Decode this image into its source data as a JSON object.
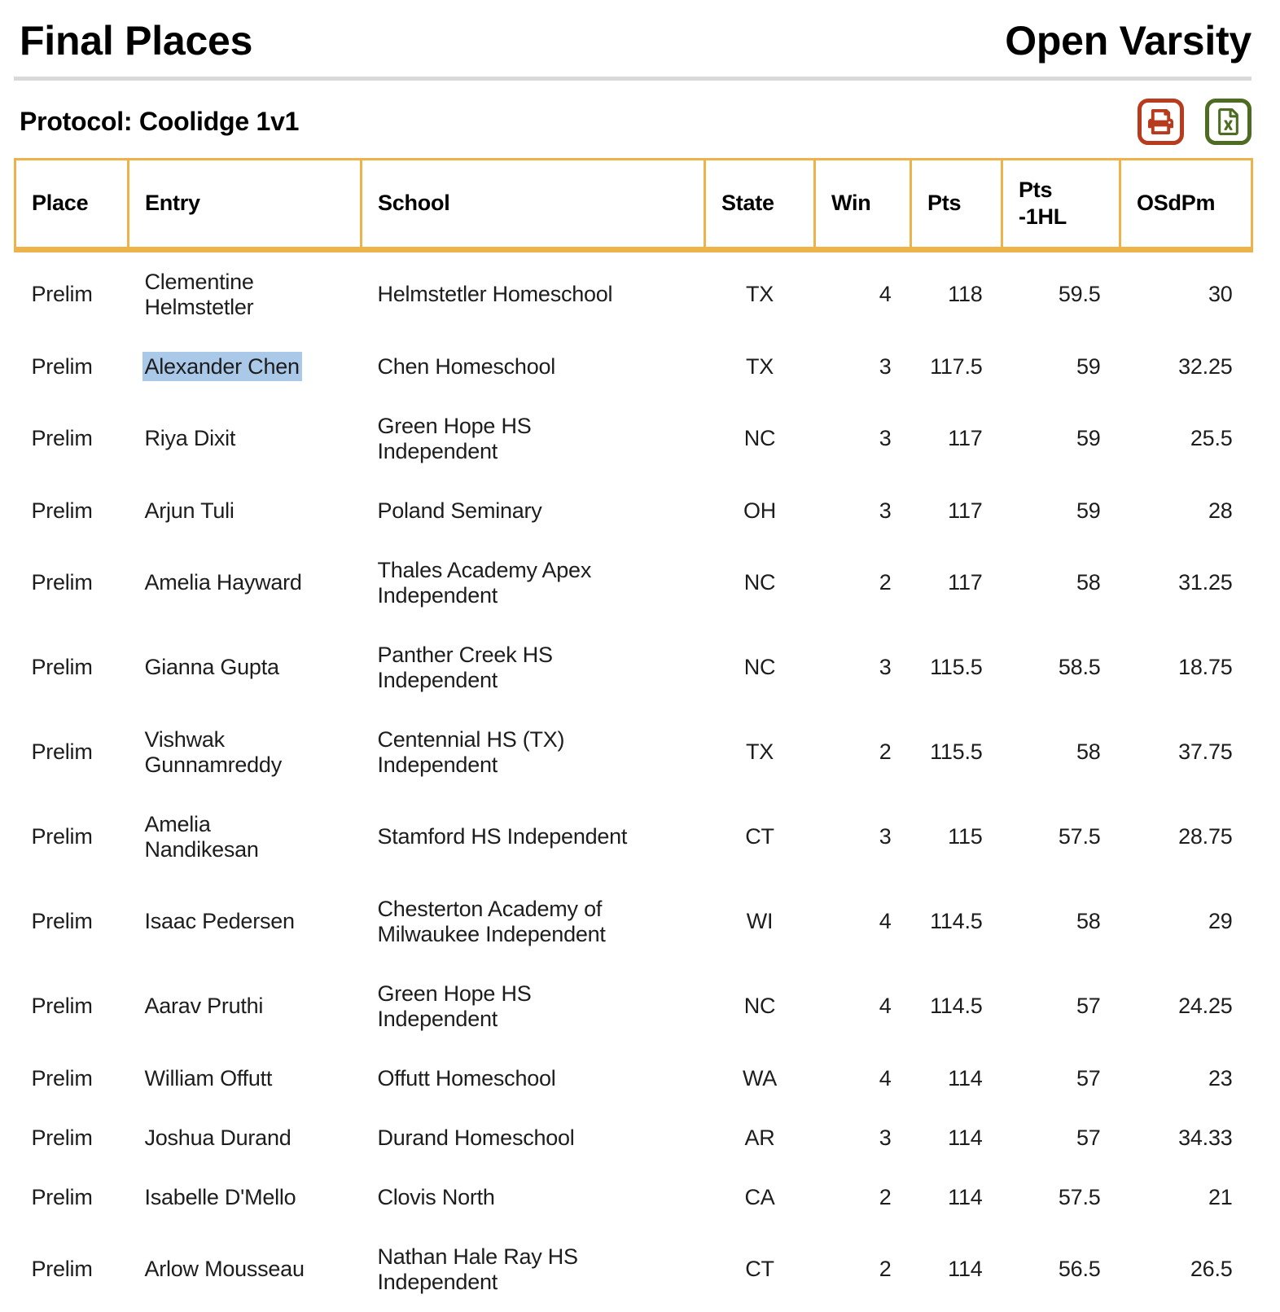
{
  "page": {
    "title": "Final Places",
    "division": "Open Varsity",
    "protocol": "Protocol: Coolidge 1v1"
  },
  "toolbar": {
    "icons": [
      {
        "name": "print-icon",
        "color": "#b83b1e"
      },
      {
        "name": "excel-file-icon",
        "color": "#4d6b21"
      }
    ]
  },
  "colors": {
    "accent_border": "#eeb24b",
    "print_red": "#b83b1e",
    "excel_green": "#4d6b21",
    "selection_blue": "#aac8e8",
    "divider_gray": "#d9d9d9",
    "text": "#1d1d1d"
  },
  "table": {
    "columns": [
      {
        "key": "place",
        "label": "Place"
      },
      {
        "key": "entry",
        "label": "Entry"
      },
      {
        "key": "school",
        "label": "School"
      },
      {
        "key": "state",
        "label": "State"
      },
      {
        "key": "win",
        "label": "Win"
      },
      {
        "key": "pts",
        "label": "Pts"
      },
      {
        "key": "pts_1hl",
        "label": "Pts\n-1HL"
      },
      {
        "key": "osdpm",
        "label": "OSdPm"
      }
    ],
    "rows": [
      {
        "place": "Prelim",
        "entry": "Clementine\nHelmstetler",
        "entry_highlighted": false,
        "school": "Helmstetler Homeschool",
        "state": "TX",
        "win": 4,
        "pts": 118,
        "pts_1hl": 59.5,
        "osdpm": 30
      },
      {
        "place": "Prelim",
        "entry": "Alexander Chen",
        "entry_highlighted": true,
        "school": "Chen Homeschool",
        "state": "TX",
        "win": 3,
        "pts": 117.5,
        "pts_1hl": 59,
        "osdpm": 32.25
      },
      {
        "place": "Prelim",
        "entry": "Riya Dixit",
        "entry_highlighted": false,
        "school": "Green Hope HS\nIndependent",
        "state": "NC",
        "win": 3,
        "pts": 117,
        "pts_1hl": 59,
        "osdpm": 25.5
      },
      {
        "place": "Prelim",
        "entry": "Arjun Tuli",
        "entry_highlighted": false,
        "school": "Poland Seminary",
        "state": "OH",
        "win": 3,
        "pts": 117,
        "pts_1hl": 59,
        "osdpm": 28
      },
      {
        "place": "Prelim",
        "entry": "Amelia Hayward",
        "entry_highlighted": false,
        "school": "Thales Academy Apex\nIndependent",
        "state": "NC",
        "win": 2,
        "pts": 117,
        "pts_1hl": 58,
        "osdpm": 31.25
      },
      {
        "place": "Prelim",
        "entry": "Gianna Gupta",
        "entry_highlighted": false,
        "school": "Panther Creek HS\nIndependent",
        "state": "NC",
        "win": 3,
        "pts": 115.5,
        "pts_1hl": 58.5,
        "osdpm": 18.75
      },
      {
        "place": "Prelim",
        "entry": "Vishwak\nGunnamreddy",
        "entry_highlighted": false,
        "school": "Centennial HS (TX)\nIndependent",
        "state": "TX",
        "win": 2,
        "pts": 115.5,
        "pts_1hl": 58,
        "osdpm": 37.75
      },
      {
        "place": "Prelim",
        "entry": "Amelia\nNandikesan",
        "entry_highlighted": false,
        "school": "Stamford HS Independent",
        "state": "CT",
        "win": 3,
        "pts": 115,
        "pts_1hl": 57.5,
        "osdpm": 28.75
      },
      {
        "place": "Prelim",
        "entry": "Isaac Pedersen",
        "entry_highlighted": false,
        "school": "Chesterton Academy of\nMilwaukee Independent",
        "state": "WI",
        "win": 4,
        "pts": 114.5,
        "pts_1hl": 58,
        "osdpm": 29
      },
      {
        "place": "Prelim",
        "entry": "Aarav Pruthi",
        "entry_highlighted": false,
        "school": "Green Hope HS\nIndependent",
        "state": "NC",
        "win": 4,
        "pts": 114.5,
        "pts_1hl": 57,
        "osdpm": 24.25
      },
      {
        "place": "Prelim",
        "entry": "William Offutt",
        "entry_highlighted": false,
        "school": "Offutt Homeschool",
        "state": "WA",
        "win": 4,
        "pts": 114,
        "pts_1hl": 57,
        "osdpm": 23
      },
      {
        "place": "Prelim",
        "entry": "Joshua Durand",
        "entry_highlighted": false,
        "school": "Durand Homeschool",
        "state": "AR",
        "win": 3,
        "pts": 114,
        "pts_1hl": 57,
        "osdpm": 34.33
      },
      {
        "place": "Prelim",
        "entry": "Isabelle D'Mello",
        "entry_highlighted": false,
        "school": "Clovis North",
        "state": "CA",
        "win": 2,
        "pts": 114,
        "pts_1hl": 57.5,
        "osdpm": 21
      },
      {
        "place": "Prelim",
        "entry": "Arlow Mousseau",
        "entry_highlighted": false,
        "school": "Nathan Hale Ray HS\nIndependent",
        "state": "CT",
        "win": 2,
        "pts": 114,
        "pts_1hl": 56.5,
        "osdpm": 26.5
      }
    ]
  }
}
